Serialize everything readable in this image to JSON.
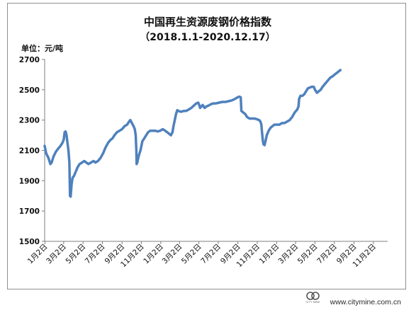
{
  "chart_data": {
    "type": "line",
    "title": "中国再生资源废钢价格指数",
    "subtitle": "（2018.1.1-2020.12.17）",
    "unit_label": "单位：元/吨",
    "ylabel": "",
    "xlabel": "",
    "ylim": [
      1500,
      2700
    ],
    "yticks": [
      1500,
      1700,
      1900,
      2100,
      2300,
      2500,
      2700
    ],
    "xlim": [
      0,
      1081
    ],
    "xticks": [
      {
        "label": "1月2日",
        "day": 1
      },
      {
        "label": "3月2日",
        "day": 60
      },
      {
        "label": "5月2日",
        "day": 121
      },
      {
        "label": "7月2日",
        "day": 182
      },
      {
        "label": "9月2日",
        "day": 244
      },
      {
        "label": "11月2日",
        "day": 305
      },
      {
        "label": "1月2日",
        "day": 366
      },
      {
        "label": "3月2日",
        "day": 425
      },
      {
        "label": "5月2日",
        "day": 486
      },
      {
        "label": "7月2日",
        "day": 547
      },
      {
        "label": "9月2日",
        "day": 609
      },
      {
        "label": "11月2日",
        "day": 670
      },
      {
        "label": "1月2日",
        "day": 731
      },
      {
        "label": "3月2日",
        "day": 791
      },
      {
        "label": "5月2日",
        "day": 852
      },
      {
        "label": "7月2日",
        "day": 913
      },
      {
        "label": "9月2日",
        "day": 975
      },
      {
        "label": "11月2日",
        "day": 1036
      }
    ],
    "grid": false,
    "series": [
      {
        "color": "#4f81bd",
        "points": [
          [
            0,
            2130
          ],
          [
            5,
            2080
          ],
          [
            12,
            2050
          ],
          [
            18,
            2010
          ],
          [
            22,
            2020
          ],
          [
            28,
            2060
          ],
          [
            35,
            2090
          ],
          [
            42,
            2110
          ],
          [
            50,
            2130
          ],
          [
            56,
            2150
          ],
          [
            60,
            2170
          ],
          [
            63,
            2220
          ],
          [
            66,
            2225
          ],
          [
            69,
            2200
          ],
          [
            72,
            2150
          ],
          [
            75,
            2100
          ],
          [
            78,
            2020
          ],
          [
            80,
            1800
          ],
          [
            82,
            1795
          ],
          [
            85,
            1880
          ],
          [
            88,
            1920
          ],
          [
            92,
            1930
          ],
          [
            98,
            1960
          ],
          [
            104,
            1990
          ],
          [
            110,
            2010
          ],
          [
            118,
            2020
          ],
          [
            125,
            2030
          ],
          [
            131,
            2020
          ],
          [
            138,
            2010
          ],
          [
            146,
            2020
          ],
          [
            154,
            2030
          ],
          [
            160,
            2020
          ],
          [
            168,
            2030
          ],
          [
            176,
            2050
          ],
          [
            184,
            2080
          ],
          [
            192,
            2120
          ],
          [
            200,
            2150
          ],
          [
            208,
            2170
          ],
          [
            214,
            2180
          ],
          [
            220,
            2200
          ],
          [
            228,
            2220
          ],
          [
            236,
            2230
          ],
          [
            244,
            2240
          ],
          [
            252,
            2260
          ],
          [
            260,
            2270
          ],
          [
            266,
            2290
          ],
          [
            270,
            2300
          ],
          [
            275,
            2280
          ],
          [
            280,
            2260
          ],
          [
            284,
            2240
          ],
          [
            287,
            2200
          ],
          [
            289,
            2100
          ],
          [
            290,
            2010
          ],
          [
            292,
            2020
          ],
          [
            296,
            2060
          ],
          [
            302,
            2100
          ],
          [
            308,
            2160
          ],
          [
            314,
            2180
          ],
          [
            320,
            2200
          ],
          [
            326,
            2220
          ],
          [
            333,
            2230
          ],
          [
            340,
            2230
          ],
          [
            348,
            2230
          ],
          [
            356,
            2225
          ],
          [
            364,
            2230
          ],
          [
            372,
            2240
          ],
          [
            380,
            2230
          ],
          [
            386,
            2220
          ],
          [
            392,
            2210
          ],
          [
            398,
            2200
          ],
          [
            403,
            2220
          ],
          [
            406,
            2260
          ],
          [
            410,
            2300
          ],
          [
            414,
            2340
          ],
          [
            418,
            2365
          ],
          [
            422,
            2360
          ],
          [
            430,
            2355
          ],
          [
            438,
            2360
          ],
          [
            446,
            2360
          ],
          [
            454,
            2370
          ],
          [
            462,
            2380
          ],
          [
            470,
            2395
          ],
          [
            478,
            2410
          ],
          [
            484,
            2415
          ],
          [
            488,
            2395
          ],
          [
            490,
            2380
          ],
          [
            494,
            2390
          ],
          [
            498,
            2400
          ],
          [
            504,
            2380
          ],
          [
            510,
            2390
          ],
          [
            516,
            2395
          ],
          [
            524,
            2405
          ],
          [
            532,
            2410
          ],
          [
            540,
            2410
          ],
          [
            550,
            2415
          ],
          [
            560,
            2420
          ],
          [
            570,
            2420
          ],
          [
            580,
            2425
          ],
          [
            590,
            2430
          ],
          [
            600,
            2440
          ],
          [
            608,
            2450
          ],
          [
            614,
            2455
          ],
          [
            618,
            2450
          ],
          [
            620,
            2360
          ],
          [
            626,
            2350
          ],
          [
            632,
            2340
          ],
          [
            638,
            2320
          ],
          [
            646,
            2310
          ],
          [
            654,
            2310
          ],
          [
            662,
            2310
          ],
          [
            670,
            2305
          ],
          [
            676,
            2300
          ],
          [
            680,
            2290
          ],
          [
            683,
            2270
          ],
          [
            685,
            2220
          ],
          [
            688,
            2160
          ],
          [
            690,
            2140
          ],
          [
            693,
            2135
          ],
          [
            696,
            2160
          ],
          [
            700,
            2200
          ],
          [
            706,
            2230
          ],
          [
            712,
            2250
          ],
          [
            718,
            2260
          ],
          [
            724,
            2270
          ],
          [
            732,
            2270
          ],
          [
            740,
            2270
          ],
          [
            748,
            2280
          ],
          [
            756,
            2280
          ],
          [
            764,
            2290
          ],
          [
            772,
            2300
          ],
          [
            780,
            2320
          ],
          [
            788,
            2350
          ],
          [
            796,
            2370
          ],
          [
            800,
            2390
          ],
          [
            802,
            2440
          ],
          [
            806,
            2460
          ],
          [
            812,
            2460
          ],
          [
            818,
            2470
          ],
          [
            824,
            2490
          ],
          [
            830,
            2510
          ],
          [
            836,
            2515
          ],
          [
            842,
            2520
          ],
          [
            848,
            2520
          ],
          [
            852,
            2500
          ],
          [
            858,
            2480
          ],
          [
            864,
            2490
          ],
          [
            870,
            2500
          ],
          [
            876,
            2520
          ],
          [
            884,
            2540
          ],
          [
            892,
            2560
          ],
          [
            900,
            2580
          ],
          [
            908,
            2590
          ],
          [
            914,
            2600
          ],
          [
            920,
            2610
          ],
          [
            926,
            2620
          ],
          [
            932,
            2630
          ]
        ]
      }
    ]
  },
  "footer": {
    "logo_text": "CITY MINE",
    "url": "www.citymine.com.cn"
  }
}
